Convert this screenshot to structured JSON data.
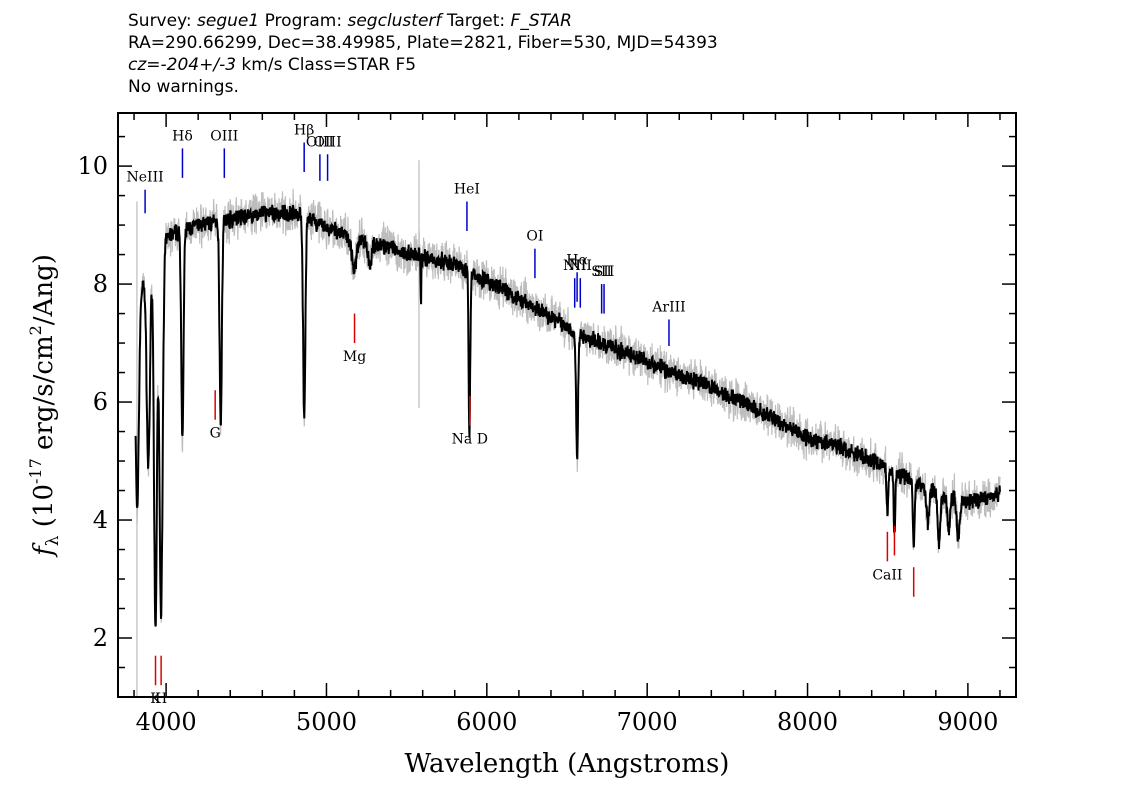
{
  "header": {
    "survey_label": "Survey:",
    "survey": "segue1",
    "program_label": "Program:",
    "program": "segclusterf",
    "target_label": "Target:",
    "target": "F_STAR",
    "line2": "RA=290.66299, Dec=38.49985, Plate=2821, Fiber=530, MJD=54393",
    "cz": "cz=-204+/-3",
    "cz_rest": " km/s Class=STAR F5",
    "line4": "No warnings."
  },
  "chart_data": {
    "type": "line",
    "title": "",
    "xlabel": "Wavelength (Angstroms)",
    "ylabel_main": "f",
    "ylabel_sub": "λ",
    "ylabel_rest1": " (10",
    "ylabel_sup": "-17",
    "ylabel_rest2": " erg/s/cm",
    "ylabel_sup2": "2",
    "ylabel_rest3": "/Ang)",
    "xlim": [
      3700,
      9300
    ],
    "ylim": [
      1.0,
      10.9
    ],
    "xticks": [
      4000,
      5000,
      6000,
      7000,
      8000,
      9000
    ],
    "yticks": [
      2,
      4,
      6,
      8,
      10
    ],
    "continuum_points": [
      [
        3800,
        7.6
      ],
      [
        3900,
        8.3
      ],
      [
        4000,
        8.8
      ],
      [
        4200,
        9.0
      ],
      [
        4400,
        9.1
      ],
      [
        4600,
        9.2
      ],
      [
        4800,
        9.2
      ],
      [
        5000,
        8.95
      ],
      [
        5200,
        8.75
      ],
      [
        5400,
        8.6
      ],
      [
        5600,
        8.45
      ],
      [
        5800,
        8.35
      ],
      [
        6000,
        8.05
      ],
      [
        6200,
        7.75
      ],
      [
        6400,
        7.45
      ],
      [
        6600,
        7.1
      ],
      [
        6800,
        6.9
      ],
      [
        7000,
        6.7
      ],
      [
        7200,
        6.45
      ],
      [
        7400,
        6.25
      ],
      [
        7600,
        6.0
      ],
      [
        7800,
        5.7
      ],
      [
        8000,
        5.4
      ],
      [
        8200,
        5.25
      ],
      [
        8400,
        5.0
      ],
      [
        8600,
        4.75
      ],
      [
        8800,
        4.45
      ],
      [
        9000,
        4.3
      ],
      [
        9200,
        4.45
      ]
    ],
    "absorption_lines": [
      [
        3820,
        3.6,
        10
      ],
      [
        3889,
        3.3,
        10
      ],
      [
        3933.7,
        6.3,
        9
      ],
      [
        3968.5,
        6.2,
        10
      ],
      [
        4101.7,
        3.5,
        7
      ],
      [
        4340.5,
        3.4,
        7
      ],
      [
        4861.3,
        3.4,
        7
      ],
      [
        5172,
        0.5,
        15
      ],
      [
        5270,
        0.35,
        10
      ],
      [
        5589,
        0.8,
        2
      ],
      [
        5890,
        2.4,
        4
      ],
      [
        5896,
        1.0,
        4
      ],
      [
        6562.8,
        2.1,
        6
      ],
      [
        8498,
        0.8,
        5
      ],
      [
        8542,
        1.0,
        5
      ],
      [
        8662,
        1.2,
        5
      ],
      [
        8750,
        0.6,
        8
      ],
      [
        8820,
        0.9,
        8
      ],
      [
        8880,
        0.6,
        8
      ],
      [
        8940,
        0.7,
        8
      ]
    ],
    "error_band": 0.25,
    "sky_lines": [
      [
        3818,
        1.0,
        9.4
      ],
      [
        5577,
        5.9,
        10.1
      ]
    ],
    "emission_markers": [
      {
        "label": "NeIII",
        "x": 3869,
        "y0": 9.2,
        "y1": 9.6
      },
      {
        "label": "Hδ",
        "x": 4102,
        "y0": 9.8,
        "y1": 10.3
      },
      {
        "label": "OIII",
        "x": 4363,
        "y0": 9.8,
        "y1": 10.3
      },
      {
        "label": "Hβ",
        "x": 4861,
        "y0": 9.9,
        "y1": 10.4
      },
      {
        "label": "OIII",
        "x": 4959,
        "y0": 9.75,
        "y1": 10.2
      },
      {
        "label": "OIII",
        "x": 5007,
        "y0": 9.75,
        "y1": 10.2
      },
      {
        "label": "HeI",
        "x": 5876,
        "y0": 8.9,
        "y1": 9.4
      },
      {
        "label": "OI",
        "x": 6300,
        "y0": 8.1,
        "y1": 8.6
      },
      {
        "label": "NII",
        "x": 6548,
        "y0": 7.6,
        "y1": 8.1
      },
      {
        "label": "Hα",
        "x": 6563,
        "y0": 7.7,
        "y1": 8.2
      },
      {
        "label": "NII",
        "x": 6583,
        "y0": 7.6,
        "y1": 8.1
      },
      {
        "label": "SII",
        "x": 6716,
        "y0": 7.5,
        "y1": 8.0
      },
      {
        "label": "SII",
        "x": 6731,
        "y0": 7.5,
        "y1": 8.0
      },
      {
        "label": "ArIII",
        "x": 7136,
        "y0": 6.95,
        "y1": 7.4
      }
    ],
    "absorption_markers": [
      {
        "label": "K",
        "x": 3934,
        "y0": 1.2,
        "y1": 1.7
      },
      {
        "label": "H",
        "x": 3969,
        "y0": 1.2,
        "y1": 1.7
      },
      {
        "label": "G",
        "x": 4306,
        "y0": 5.7,
        "y1": 6.2
      },
      {
        "label": "Mg",
        "x": 5175,
        "y0": 7.0,
        "y1": 7.5
      },
      {
        "label": "Na D",
        "x": 5894,
        "y0": 5.6,
        "y1": 6.1
      },
      {
        "label": "CaII",
        "x": 8498,
        "y0": 3.3,
        "y1": 3.8
      },
      {
        "label": "CaII",
        "x": 8542,
        "y0": 3.4,
        "y1": 3.9
      },
      {
        "label": "CaII",
        "x": 8662,
        "y0": 2.7,
        "y1": 3.2
      }
    ],
    "colors": {
      "spectrum": "#000000",
      "error": "#bdbdbd",
      "emission": "#0000cc",
      "absorption": "#dd0000",
      "axis": "#000000"
    }
  }
}
